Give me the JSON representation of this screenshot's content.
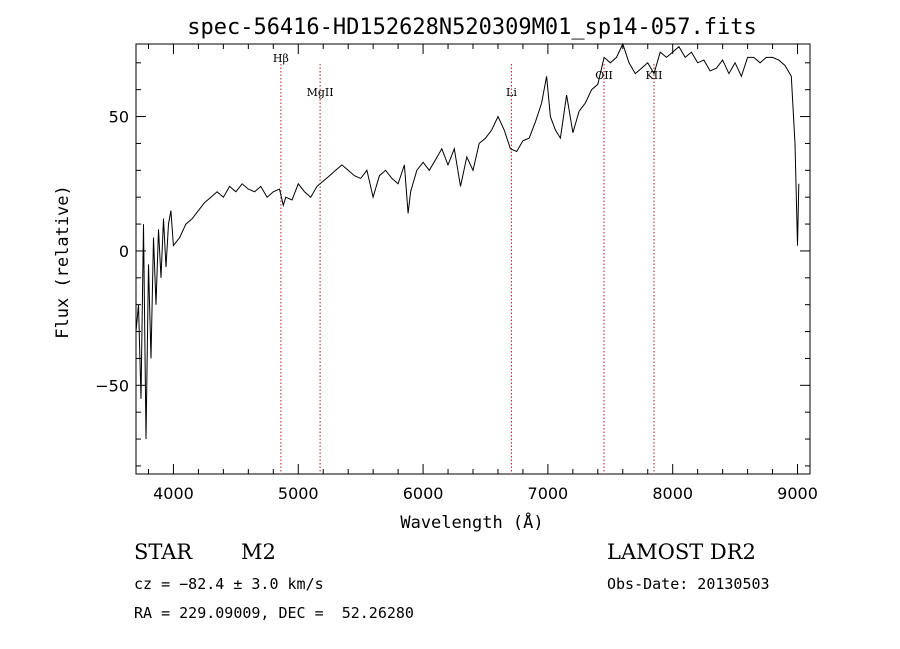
{
  "chart_data": {
    "type": "line",
    "title": "spec-56416-HD152628N520309M01_sp14-057.fits",
    "xlabel": "Wavelength (Å)",
    "ylabel": "Flux (relative)",
    "xlim": [
      3700,
      9100
    ],
    "ylim": [
      -83,
      77
    ],
    "x_ticks": [
      4000,
      5000,
      6000,
      7000,
      8000,
      9000
    ],
    "y_ticks": [
      -50,
      0,
      50
    ],
    "x_tick_labels": [
      "4000",
      "5000",
      "6000",
      "7000",
      "8000",
      "9000"
    ],
    "y_tick_labels": [
      "−50",
      "0",
      "50"
    ],
    "grid": false,
    "line_color": "#000000",
    "marker_color": "#b22222",
    "series": [
      {
        "x": [
          3700,
          3720,
          3740,
          3760,
          3780,
          3800,
          3820,
          3840,
          3860,
          3880,
          3900,
          3920,
          3940,
          3960,
          3980,
          4000,
          4050,
          4100,
          4150,
          4200,
          4250,
          4300,
          4350,
          4400,
          4450,
          4500,
          4550,
          4600,
          4650,
          4700,
          4750,
          4800,
          4850,
          4880,
          4900,
          4950,
          5000,
          5050,
          5100,
          5150,
          5200,
          5250,
          5300,
          5350,
          5400,
          5450,
          5500,
          5550,
          5600,
          5650,
          5700,
          5750,
          5800,
          5850,
          5880,
          5900,
          5950,
          6000,
          6050,
          6100,
          6150,
          6200,
          6250,
          6300,
          6350,
          6400,
          6450,
          6500,
          6550,
          6600,
          6650,
          6700,
          6750,
          6800,
          6850,
          6900,
          6950,
          6990,
          7020,
          7060,
          7100,
          7150,
          7200,
          7250,
          7300,
          7350,
          7400,
          7450,
          7500,
          7550,
          7600,
          7650,
          7700,
          7750,
          7800,
          7850,
          7900,
          7950,
          8000,
          8050,
          8100,
          8150,
          8200,
          8250,
          8300,
          8350,
          8400,
          8450,
          8500,
          8550,
          8600,
          8650,
          8700,
          8750,
          8800,
          8850,
          8900,
          8950,
          8980,
          9000,
          9010
        ],
        "y": [
          -30,
          -20,
          -55,
          10,
          -70,
          -5,
          -40,
          5,
          -20,
          8,
          -10,
          12,
          -6,
          10,
          15,
          2,
          5,
          10,
          12,
          15,
          18,
          20,
          22,
          20,
          24,
          22,
          25,
          23,
          22,
          24,
          20,
          22,
          23,
          17,
          20,
          19,
          25,
          22,
          20,
          24,
          26,
          28,
          30,
          32,
          30,
          28,
          27,
          30,
          20,
          28,
          30,
          27,
          25,
          32,
          14,
          22,
          30,
          33,
          30,
          34,
          38,
          32,
          38,
          24,
          35,
          30,
          40,
          42,
          45,
          50,
          45,
          38,
          37,
          41,
          42,
          48,
          55,
          65,
          50,
          45,
          42,
          58,
          44,
          52,
          55,
          60,
          62,
          72,
          70,
          72,
          78,
          70,
          66,
          68,
          70,
          66,
          74,
          72,
          74,
          76,
          72,
          74,
          70,
          71,
          67,
          68,
          71,
          66,
          70,
          65,
          72,
          72,
          70,
          72,
          72,
          71,
          69,
          65,
          40,
          2,
          25
        ]
      }
    ],
    "line_markers": [
      {
        "label": "Hβ",
        "x": 4861
      },
      {
        "label": "MgII",
        "x": 5175
      },
      {
        "label": "Li",
        "x": 6708
      },
      {
        "label": "OII",
        "x": 7450
      },
      {
        "label": "KII",
        "x": 7850
      }
    ]
  },
  "info": {
    "object_type": "STAR",
    "subclass": "M2",
    "survey": "LAMOST DR2",
    "cz": "cz = −82.4 ± 3.0 km/s",
    "obs_date": "Obs-Date: 20130503",
    "coords": "RA = 229.09009, DEC =  52.26280"
  }
}
